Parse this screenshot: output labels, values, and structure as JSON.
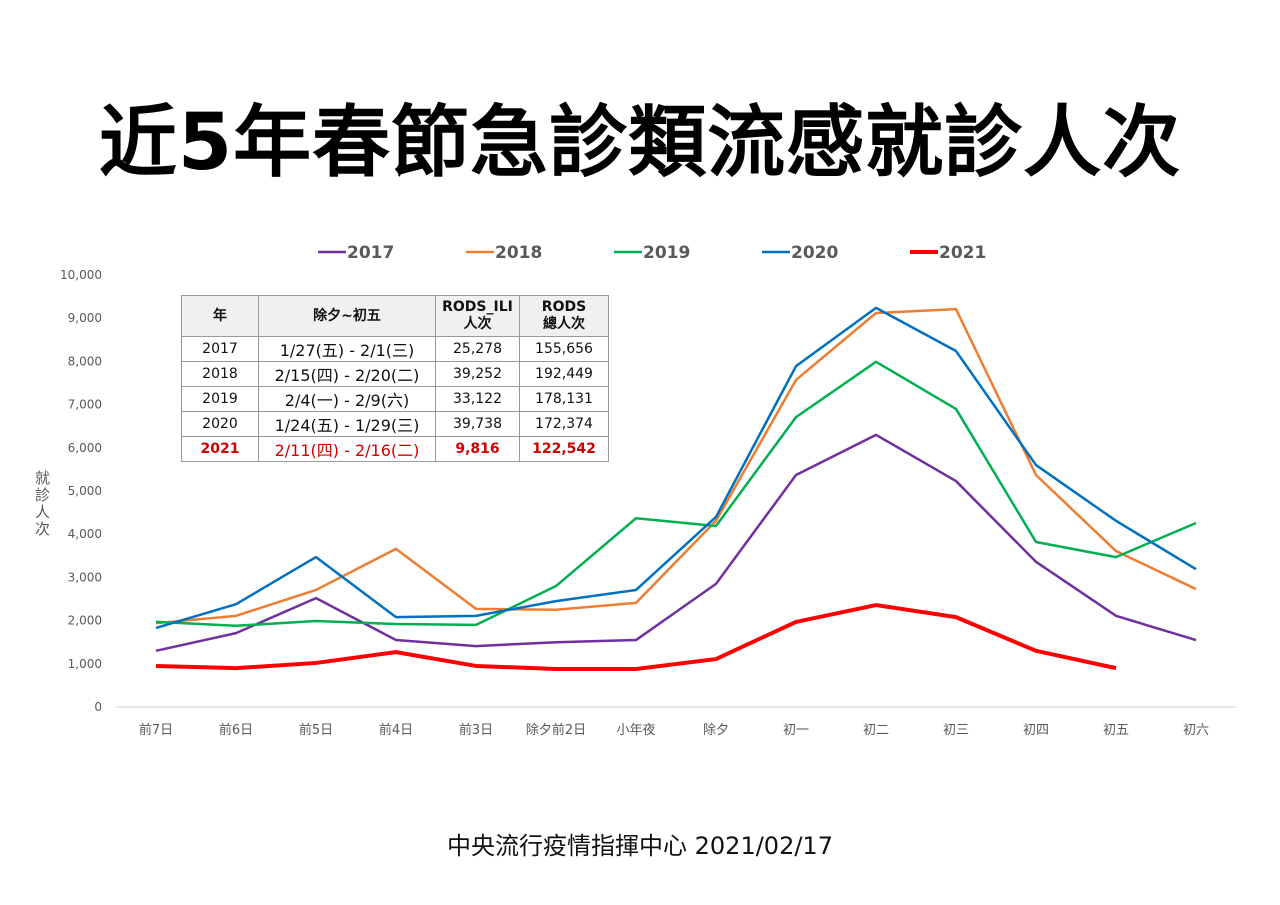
{
  "title": "近5年春節急診類流感就診人次",
  "footer": "中央流行疫情指揮中心 2021/02/17",
  "chart_data": {
    "type": "line",
    "ylabel": "就診人次",
    "ylim": [
      0,
      10000
    ],
    "yticks": [
      "0",
      "1,000",
      "2,000",
      "3,000",
      "4,000",
      "5,000",
      "6,000",
      "7,000",
      "8,000",
      "9,000",
      "10,000"
    ],
    "categories": [
      "前7日",
      "前6日",
      "前5日",
      "前4日",
      "前3日",
      "除夕前2日",
      "小年夜",
      "除夕",
      "初一",
      "初二",
      "初三",
      "初四",
      "初五",
      "初六"
    ],
    "legend_position": "top",
    "series": [
      {
        "name": "2017",
        "color": "#7030a0",
        "width": 2.5,
        "values": [
          1300,
          1710,
          2520,
          1550,
          1410,
          1500,
          1550,
          2850,
          5370,
          6300,
          5230,
          3360,
          2110,
          1550
        ]
      },
      {
        "name": "2018",
        "color": "#ed7d31",
        "width": 2.5,
        "values": [
          1940,
          2110,
          2710,
          3660,
          2270,
          2250,
          2410,
          4310,
          7570,
          9120,
          9210,
          5370,
          3610,
          2730
        ]
      },
      {
        "name": "2019",
        "color": "#00b050",
        "width": 2.5,
        "values": [
          1970,
          1880,
          1990,
          1920,
          1900,
          2800,
          4370,
          4190,
          6710,
          7990,
          6900,
          3820,
          3470,
          4260
        ]
      },
      {
        "name": "2020",
        "color": "#0070c0",
        "width": 2.5,
        "values": [
          1830,
          2380,
          3470,
          2080,
          2110,
          2450,
          2710,
          4400,
          7890,
          9240,
          8240,
          5600,
          4310,
          3190
        ]
      },
      {
        "name": "2021",
        "color": "#ff0000",
        "width": 4,
        "values": [
          950,
          900,
          1020,
          1270,
          950,
          880,
          880,
          1110,
          1970,
          2360,
          2080,
          1300,
          900,
          null
        ]
      }
    ]
  },
  "table": {
    "headers": [
      "年",
      "除夕~初五",
      "RODS_ILI\n人次",
      "RODS\n總人次"
    ],
    "rows": [
      [
        "2017",
        "1/27(五) - 2/1(三)",
        "25,278",
        "155,656"
      ],
      [
        "2018",
        "2/15(四) - 2/20(二)",
        "39,252",
        "192,449"
      ],
      [
        "2019",
        "2/4(一) - 2/9(六)",
        "33,122",
        "178,131"
      ],
      [
        "2020",
        "1/24(五) - 1/29(三)",
        "39,738",
        "172,374"
      ],
      [
        "2021",
        "2/11(四) - 2/16(二)",
        "9,816",
        "122,542"
      ]
    ]
  }
}
